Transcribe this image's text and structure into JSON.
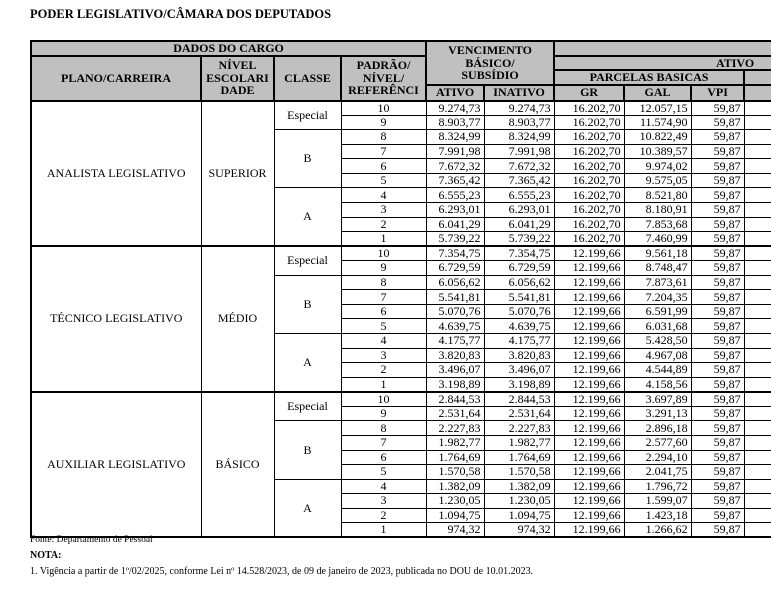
{
  "page_title": "PODER LEGISLATIVO/CÂMARA DOS DEPUTADOS",
  "colors": {
    "header_bg": "#c0c0c0",
    "border": "#000000",
    "text": "#000000",
    "page_bg": "#ffffff"
  },
  "table": {
    "header": {
      "dados_do_cargo": "DADOS DO CARGO",
      "plano_carreira": "PLANO/CARREIRA",
      "nivel_escolaridade_lines": [
        "NÍVEL",
        "ESCOLARI",
        "DADE"
      ],
      "classe": "CLASSE",
      "padrao_lines": [
        "PADRÃO/",
        "NÍVEL/",
        "REFERÊNCI"
      ],
      "vencimento_lines": [
        "VENCIMENTO",
        "BÁSICO/",
        "SUBSÍDIO"
      ],
      "ativo": "ATIVO",
      "inativo": "INATIVO",
      "ativo_section": "ATIVO",
      "parcelas_basicas": "PARCELAS BASICAS",
      "gr": "GR",
      "gal": "GAL",
      "vpi": "VPI"
    },
    "column_order": [
      "padrao",
      "vencimento_ativo",
      "vencimento_inativo",
      "gr",
      "gal",
      "vpi"
    ],
    "groups": [
      {
        "plano_carreira": "ANALISTA LEGISLATIVO",
        "nivel_escolaridade": "SUPERIOR",
        "classes": [
          {
            "classe": "Especial",
            "rows": [
              [
                "10",
                "9.274,73",
                "9.274,73",
                "16.202,70",
                "12.057,15",
                "59,87"
              ],
              [
                "9",
                "8.903,77",
                "8.903,77",
                "16.202,70",
                "11.574,90",
                "59,87"
              ]
            ]
          },
          {
            "classe": "B",
            "rows": [
              [
                "8",
                "8.324,99",
                "8.324,99",
                "16.202,70",
                "10.822,49",
                "59,87"
              ],
              [
                "7",
                "7.991,98",
                "7.991,98",
                "16.202,70",
                "10.389,57",
                "59,87"
              ],
              [
                "6",
                "7.672,32",
                "7.672,32",
                "16.202,70",
                "9.974,02",
                "59,87"
              ],
              [
                "5",
                "7.365,42",
                "7.365,42",
                "16.202,70",
                "9.575,05",
                "59,87"
              ]
            ]
          },
          {
            "classe": "A",
            "rows": [
              [
                "4",
                "6.555,23",
                "6.555,23",
                "16.202,70",
                "8.521,80",
                "59,87"
              ],
              [
                "3",
                "6.293,01",
                "6.293,01",
                "16.202,70",
                "8.180,91",
                "59,87"
              ],
              [
                "2",
                "6.041,29",
                "6.041,29",
                "16.202,70",
                "7.853,68",
                "59,87"
              ],
              [
                "1",
                "5.739,22",
                "5.739,22",
                "16.202,70",
                "7.460,99",
                "59,87"
              ]
            ]
          }
        ]
      },
      {
        "plano_carreira": "TÉCNICO LEGISLATIVO",
        "nivel_escolaridade": "MÉDIO",
        "classes": [
          {
            "classe": "Especial",
            "rows": [
              [
                "10",
                "7.354,75",
                "7.354,75",
                "12.199,66",
                "9.561,18",
                "59,87"
              ],
              [
                "9",
                "6.729,59",
                "6.729,59",
                "12.199,66",
                "8.748,47",
                "59,87"
              ]
            ]
          },
          {
            "classe": "B",
            "rows": [
              [
                "8",
                "6.056,62",
                "6.056,62",
                "12.199,66",
                "7.873,61",
                "59,87"
              ],
              [
                "7",
                "5.541,81",
                "5.541,81",
                "12.199,66",
                "7.204,35",
                "59,87"
              ],
              [
                "6",
                "5.070,76",
                "5.070,76",
                "12.199,66",
                "6.591,99",
                "59,87"
              ],
              [
                "5",
                "4.639,75",
                "4.639,75",
                "12.199,66",
                "6.031,68",
                "59,87"
              ]
            ]
          },
          {
            "classe": "A",
            "rows": [
              [
                "4",
                "4.175,77",
                "4.175,77",
                "12.199,66",
                "5.428,50",
                "59,87"
              ],
              [
                "3",
                "3.820,83",
                "3.820,83",
                "12.199,66",
                "4.967,08",
                "59,87"
              ],
              [
                "2",
                "3.496,07",
                "3.496,07",
                "12.199,66",
                "4.544,89",
                "59,87"
              ],
              [
                "1",
                "3.198,89",
                "3.198,89",
                "12.199,66",
                "4.158,56",
                "59,87"
              ]
            ]
          }
        ]
      },
      {
        "plano_carreira": "AUXILIAR LEGISLATIVO",
        "nivel_escolaridade": "BÁSICO",
        "classes": [
          {
            "classe": "Especial",
            "rows": [
              [
                "10",
                "2.844,53",
                "2.844,53",
                "12.199,66",
                "3.697,89",
                "59,87"
              ],
              [
                "9",
                "2.531,64",
                "2.531,64",
                "12.199,66",
                "3.291,13",
                "59,87"
              ]
            ]
          },
          {
            "classe": "B",
            "rows": [
              [
                "8",
                "2.227,83",
                "2.227,83",
                "12.199,66",
                "2.896,18",
                "59,87"
              ],
              [
                "7",
                "1.982,77",
                "1.982,77",
                "12.199,66",
                "2.577,60",
                "59,87"
              ],
              [
                "6",
                "1.764,69",
                "1.764,69",
                "12.199,66",
                "2.294,10",
                "59,87"
              ],
              [
                "5",
                "1.570,58",
                "1.570,58",
                "12.199,66",
                "2.041,75",
                "59,87"
              ]
            ]
          },
          {
            "classe": "A",
            "rows": [
              [
                "4",
                "1.382,09",
                "1.382,09",
                "12.199,66",
                "1.796,72",
                "59,87"
              ],
              [
                "3",
                "1.230,05",
                "1.230,05",
                "12.199,66",
                "1.599,07",
                "59,87"
              ],
              [
                "2",
                "1.094,75",
                "1.094,75",
                "12.199,66",
                "1.423,18",
                "59,87"
              ],
              [
                "1",
                "974,32",
                "974,32",
                "12.199,66",
                "1.266,62",
                "59,87"
              ]
            ]
          }
        ]
      }
    ]
  },
  "footer": {
    "fonte": "Fonte: Departamento de Pessoal",
    "nota_label": "NOTA:",
    "nota_1": "1. Vigência a partir de 1º/02/2025, conforme Lei nº 14.528/2023, de 09 de janeiro de 2023, publicada no DOU de 10.01.2023."
  }
}
